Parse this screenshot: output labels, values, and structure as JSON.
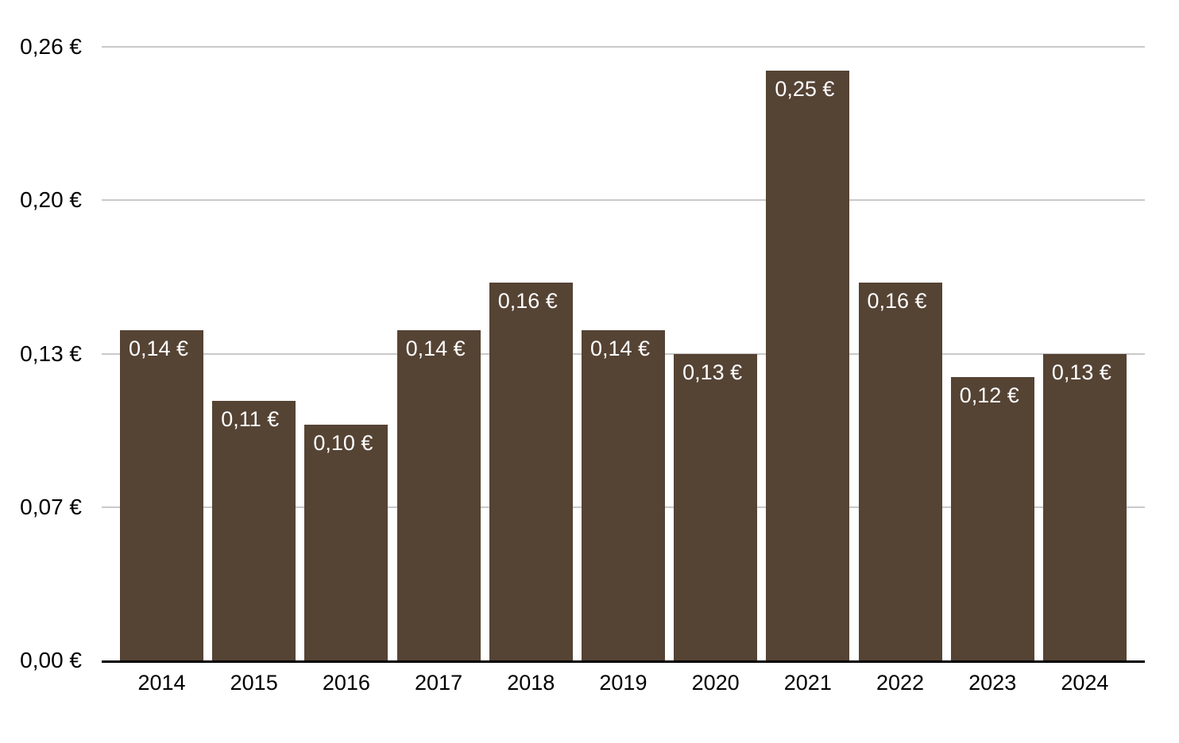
{
  "chart_data": {
    "type": "bar",
    "title": "",
    "xlabel": "",
    "ylabel": "",
    "categories": [
      "2014",
      "2015",
      "2016",
      "2017",
      "2018",
      "2019",
      "2020",
      "2021",
      "2022",
      "2023",
      "2024"
    ],
    "values": [
      0.14,
      0.11,
      0.1,
      0.14,
      0.16,
      0.14,
      0.13,
      0.25,
      0.16,
      0.12,
      0.13
    ],
    "value_labels": [
      "0,14 €",
      "0,11 €",
      "0,10 €",
      "0,14 €",
      "0,16 €",
      "0,14 €",
      "0,13 €",
      "0,25 €",
      "0,16 €",
      "0,12 €",
      "0,13 €"
    ],
    "ylim": [
      0,
      0.26
    ],
    "y_ticks": [
      {
        "label": "0,26 €",
        "value": 0.26
      },
      {
        "label": "0,20 €",
        "value": 0.195
      },
      {
        "label": "0,13 €",
        "value": 0.13
      },
      {
        "label": "0,07 €",
        "value": 0.065
      },
      {
        "label": "0,00 €",
        "value": 0.0
      }
    ],
    "grid": "horizontal",
    "legend": "none",
    "colors": {
      "bar": "#554334",
      "bar_label_text": "#ffffff",
      "axis_text": "#000000",
      "gridline": "#c9c9c9",
      "axis_line": "#000000",
      "background": "#ffffff"
    }
  }
}
